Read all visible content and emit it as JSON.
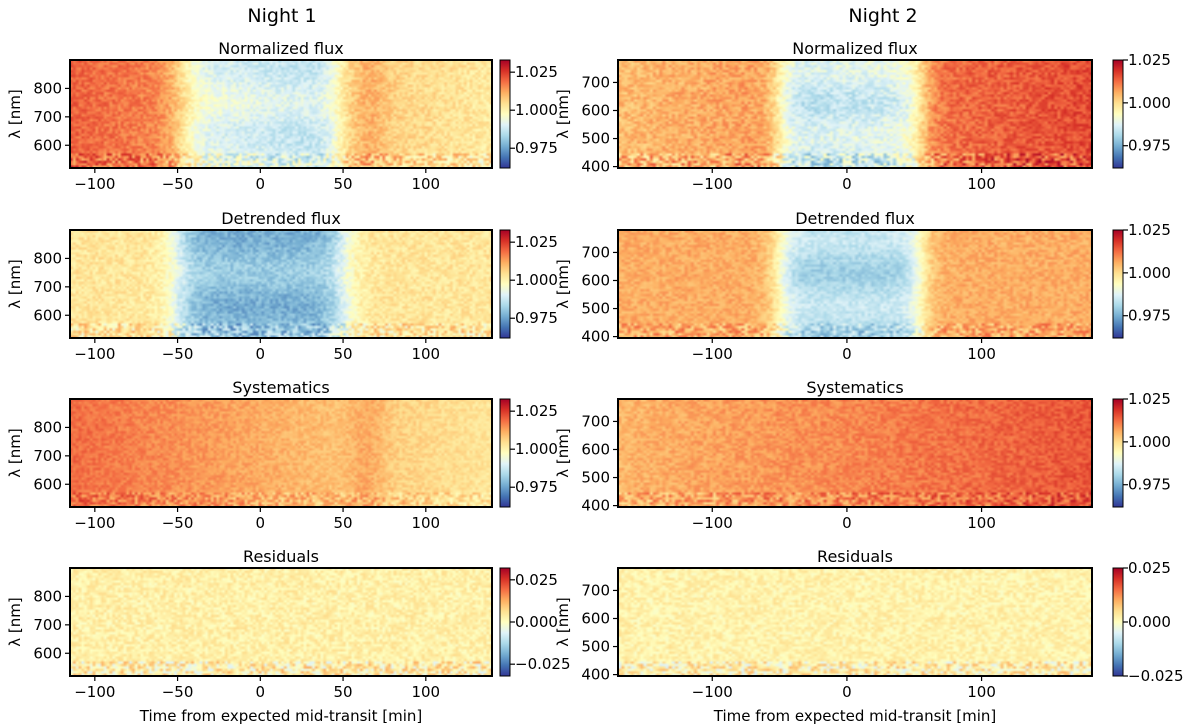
{
  "figure": {
    "columns": [
      "Night 1",
      "Night 2"
    ],
    "xlabel": "Time from expected mid-transit [min]",
    "ylabel": "λ [nm]"
  },
  "chart_data": [
    {
      "type": "heatmap",
      "column": "Night 1",
      "title": "Normalized flux",
      "xlabel": "",
      "ylabel": "λ [nm]",
      "x_range": [
        -115,
        140
      ],
      "y_range": [
        520,
        900
      ],
      "x_ticks": [
        -100,
        -50,
        0,
        50,
        100
      ],
      "x_tick_labels": [
        "−100",
        "−50",
        "0",
        "50",
        "100"
      ],
      "y_ticks": [
        600,
        700,
        800
      ],
      "y_tick_labels": [
        "600",
        "700",
        "800"
      ],
      "colorbar": {
        "range": [
          0.962,
          1.033
        ],
        "ticks": [
          0.975,
          1.0,
          1.025
        ],
        "tick_labels": [
          "0.975",
          "1.000",
          "1.025"
        ]
      },
      "model": {
        "transit_start": -47,
        "transit_end": 47,
        "depth": 0.022,
        "baseline": 1.002,
        "trend_start": 0.018,
        "trend_end": 0.0,
        "bump": 0.004,
        "noise": 0.004
      }
    },
    {
      "type": "heatmap",
      "column": "Night 1",
      "title": "Detrended flux",
      "xlabel": "",
      "ylabel": "λ [nm]",
      "x_range": [
        -115,
        140
      ],
      "y_range": [
        520,
        900
      ],
      "x_ticks": [
        -100,
        -50,
        0,
        50,
        100
      ],
      "x_tick_labels": [
        "−100",
        "−50",
        "0",
        "50",
        "100"
      ],
      "y_ticks": [
        600,
        700,
        800
      ],
      "y_tick_labels": [
        "600",
        "700",
        "800"
      ],
      "colorbar": {
        "range": [
          0.962,
          1.033
        ],
        "ticks": [
          0.975,
          1.0,
          1.025
        ],
        "tick_labels": [
          "0.975",
          "1.000",
          "1.025"
        ]
      },
      "model": {
        "transit_start": -50,
        "transit_end": 50,
        "depth": 0.024,
        "baseline": 1.003,
        "trend_start": 0.0,
        "trend_end": 0.0,
        "bump": 0.0,
        "noise": 0.004
      }
    },
    {
      "type": "heatmap",
      "column": "Night 1",
      "title": "Systematics",
      "xlabel": "",
      "ylabel": "λ [nm]",
      "x_range": [
        -115,
        140
      ],
      "y_range": [
        520,
        900
      ],
      "x_ticks": [
        -100,
        -50,
        0,
        50,
        100
      ],
      "x_tick_labels": [
        "−100",
        "−50",
        "0",
        "50",
        "100"
      ],
      "y_ticks": [
        600,
        700,
        800
      ],
      "y_tick_labels": [
        "600",
        "700",
        "800"
      ],
      "colorbar": {
        "range": [
          0.962,
          1.033
        ],
        "ticks": [
          0.975,
          1.0,
          1.025
        ],
        "tick_labels": [
          "0.975",
          "1.000",
          "1.025"
        ]
      },
      "model": {
        "transit_start": 0,
        "transit_end": 0,
        "depth": 0.0,
        "baseline": 1.003,
        "trend_start": 0.016,
        "trend_end": 0.0,
        "bump": 0.004,
        "noise": 0.003
      }
    },
    {
      "type": "heatmap",
      "column": "Night 1",
      "title": "Residuals",
      "xlabel": "Time from expected mid-transit [min]",
      "ylabel": "λ [nm]",
      "x_range": [
        -115,
        140
      ],
      "y_range": [
        520,
        900
      ],
      "x_ticks": [
        -100,
        -50,
        0,
        50,
        100
      ],
      "x_tick_labels": [
        "−100",
        "−50",
        "0",
        "50",
        "100"
      ],
      "y_ticks": [
        600,
        700,
        800
      ],
      "y_tick_labels": [
        "600",
        "700",
        "800"
      ],
      "colorbar": {
        "range": [
          -0.032,
          0.032
        ],
        "ticks": [
          -0.025,
          0.0,
          0.025
        ],
        "tick_labels": [
          "−0.025",
          "0.000",
          "0.025"
        ]
      },
      "model": {
        "transit_start": 0,
        "transit_end": 0,
        "depth": 0.0,
        "baseline": 0.003,
        "trend_start": 0.0,
        "trend_end": 0.0,
        "bump": 0.0,
        "noise": 0.004
      }
    },
    {
      "type": "heatmap",
      "column": "Night 2",
      "title": "Normalized flux",
      "xlabel": "",
      "ylabel": "λ [nm]",
      "x_range": [
        -170,
        182
      ],
      "y_range": [
        395,
        780
      ],
      "x_ticks": [
        -100,
        0,
        100
      ],
      "x_tick_labels": [
        "−100",
        "0",
        "100"
      ],
      "y_ticks": [
        400,
        500,
        600,
        700
      ],
      "y_tick_labels": [
        "400",
        "500",
        "600",
        "700"
      ],
      "colorbar": {
        "range": [
          0.962,
          1.025
        ],
        "ticks": [
          0.975,
          1.0,
          1.025
        ],
        "tick_labels": [
          "0.975",
          "1.000",
          "1.025"
        ]
      },
      "model": {
        "transit_start": -50,
        "transit_end": 55,
        "depth": 0.024,
        "baseline": 1.004,
        "trend_start": 0.0,
        "trend_end": 0.012,
        "bump": 0.0,
        "noise": 0.004
      }
    },
    {
      "type": "heatmap",
      "column": "Night 2",
      "title": "Detrended flux",
      "xlabel": "",
      "ylabel": "λ [nm]",
      "x_range": [
        -170,
        182
      ],
      "y_range": [
        395,
        780
      ],
      "x_ticks": [
        -100,
        0,
        100
      ],
      "x_tick_labels": [
        "−100",
        "0",
        "100"
      ],
      "y_ticks": [
        400,
        500,
        600,
        700
      ],
      "y_tick_labels": [
        "400",
        "500",
        "600",
        "700"
      ],
      "colorbar": {
        "range": [
          0.962,
          1.025
        ],
        "ticks": [
          0.975,
          1.0,
          1.025
        ],
        "tick_labels": [
          "0.975",
          "1.000",
          "1.025"
        ]
      },
      "model": {
        "transit_start": -50,
        "transit_end": 55,
        "depth": 0.024,
        "baseline": 1.006,
        "trend_start": 0.0,
        "trend_end": 0.0,
        "bump": 0.0,
        "noise": 0.003
      }
    },
    {
      "type": "heatmap",
      "column": "Night 2",
      "title": "Systematics",
      "xlabel": "",
      "ylabel": "λ [nm]",
      "x_range": [
        -170,
        182
      ],
      "y_range": [
        395,
        780
      ],
      "x_ticks": [
        -100,
        0,
        100
      ],
      "x_tick_labels": [
        "−100",
        "0",
        "100"
      ],
      "y_ticks": [
        400,
        500,
        600,
        700
      ],
      "y_tick_labels": [
        "400",
        "500",
        "600",
        "700"
      ],
      "colorbar": {
        "range": [
          0.962,
          1.025
        ],
        "ticks": [
          0.975,
          1.0,
          1.025
        ],
        "tick_labels": [
          "0.975",
          "1.000",
          "1.025"
        ]
      },
      "model": {
        "transit_start": 0,
        "transit_end": 0,
        "depth": 0.0,
        "baseline": 1.005,
        "trend_start": 0.0,
        "trend_end": 0.01,
        "bump": 0.0,
        "noise": 0.003
      }
    },
    {
      "type": "heatmap",
      "column": "Night 2",
      "title": "Residuals",
      "xlabel": "Time from expected mid-transit [min]",
      "ylabel": "λ [nm]",
      "x_range": [
        -170,
        182
      ],
      "y_range": [
        395,
        780
      ],
      "x_ticks": [
        -100,
        0,
        100
      ],
      "x_tick_labels": [
        "−100",
        "0",
        "100"
      ],
      "y_ticks": [
        400,
        500,
        600,
        700
      ],
      "y_tick_labels": [
        "400",
        "500",
        "600",
        "700"
      ],
      "colorbar": {
        "range": [
          -0.025,
          0.025
        ],
        "ticks": [
          -0.025,
          0.0,
          0.025
        ],
        "tick_labels": [
          "−0.025",
          "0.000",
          "0.025"
        ]
      },
      "model": {
        "transit_start": 0,
        "transit_end": 0,
        "depth": 0.0,
        "baseline": 0.002,
        "trend_start": 0.0,
        "trend_end": 0.0,
        "bump": 0.0,
        "noise": 0.003
      }
    }
  ]
}
